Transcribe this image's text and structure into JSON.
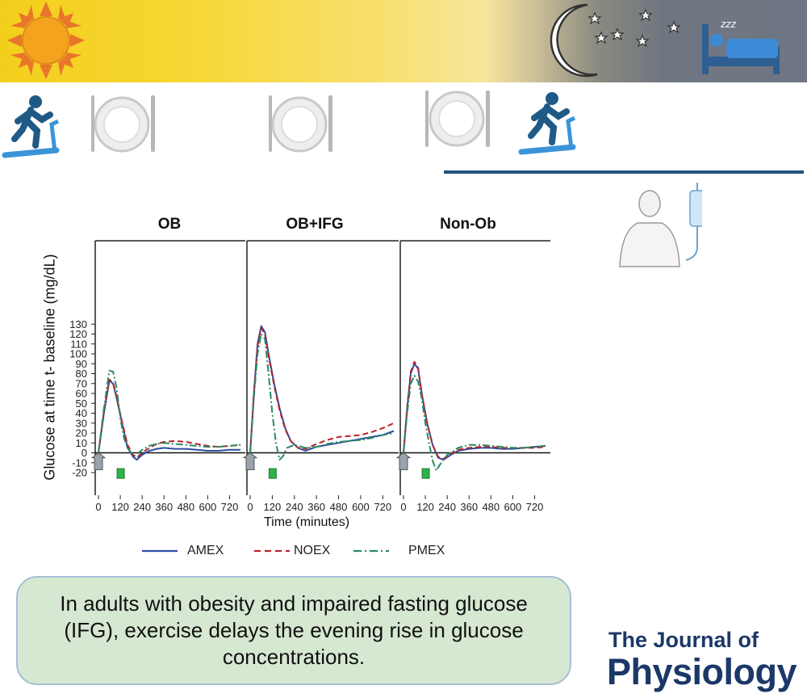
{
  "banner": {
    "icons": [
      "sun-icon",
      "moon-icon",
      "star-icon",
      "sleeping-bed-icon",
      "treadmill-runner-icon",
      "dinner-plate-icon",
      "iv-drip-patient-icon"
    ]
  },
  "chart_data": [
    {
      "type": "line",
      "title": "OB",
      "xlabel": "Time (minutes)",
      "ylabel": "Glucose at time t- baseline (mg/dL)",
      "xlim": [
        0,
        780
      ],
      "ylim": [
        -25,
        135
      ],
      "x_ticks": [
        "0",
        "120",
        "240",
        "360",
        "480",
        "600",
        "720"
      ],
      "y_ticks": [
        "-20",
        "-10",
        "0",
        "10",
        "20",
        "30",
        "40",
        "50",
        "60",
        "70",
        "80",
        "90",
        "100",
        "110",
        "120",
        "130"
      ],
      "series": [
        {
          "name": "AMEX",
          "color": "#2c4ea3",
          "dash": "solid",
          "x": [
            0,
            30,
            60,
            80,
            100,
            130,
            160,
            190,
            210,
            240,
            280,
            320,
            360,
            420,
            480,
            540,
            600,
            660,
            720,
            780
          ],
          "y": [
            0,
            40,
            73,
            70,
            55,
            30,
            5,
            -4,
            -7,
            -2,
            2,
            4,
            5,
            4,
            4,
            3,
            2,
            2,
            3,
            3
          ]
        },
        {
          "name": "NOEX",
          "color": "#b8232a",
          "dash": "dashed",
          "x": [
            0,
            30,
            60,
            80,
            100,
            130,
            160,
            190,
            210,
            240,
            280,
            320,
            360,
            420,
            480,
            540,
            600,
            660,
            720,
            780
          ],
          "y": [
            0,
            42,
            74,
            71,
            56,
            31,
            8,
            -2,
            -5,
            0,
            5,
            9,
            11,
            12,
            11,
            9,
            7,
            6,
            7,
            8
          ]
        },
        {
          "name": "PMEX",
          "color": "#2a8a63",
          "dash": "dashdot",
          "x": [
            0,
            30,
            60,
            80,
            100,
            120,
            140,
            160,
            180,
            200,
            240,
            280,
            320,
            360,
            420,
            480,
            540,
            600,
            660,
            720,
            780
          ],
          "y": [
            0,
            45,
            83,
            82,
            65,
            35,
            15,
            5,
            0,
            -3,
            3,
            7,
            9,
            10,
            9,
            8,
            7,
            6,
            6,
            7,
            8
          ]
        }
      ]
    },
    {
      "type": "line",
      "title": "OB+IFG",
      "xlabel": "Time (minutes)",
      "xlim": [
        0,
        780
      ],
      "ylim": [
        -25,
        135
      ],
      "x_ticks": [
        "0",
        "120",
        "240",
        "360",
        "480",
        "600",
        "720"
      ],
      "series": [
        {
          "name": "AMEX",
          "color": "#2c4ea3",
          "dash": "solid",
          "x": [
            0,
            20,
            40,
            60,
            80,
            100,
            130,
            160,
            190,
            220,
            260,
            300,
            360,
            420,
            480,
            540,
            600,
            660,
            720,
            780
          ],
          "y": [
            0,
            60,
            110,
            128,
            122,
            100,
            70,
            45,
            25,
            12,
            5,
            2,
            6,
            8,
            10,
            12,
            14,
            16,
            18,
            22
          ]
        },
        {
          "name": "NOEX",
          "color": "#b8232a",
          "dash": "dashed",
          "x": [
            0,
            20,
            40,
            60,
            80,
            100,
            130,
            160,
            190,
            220,
            260,
            300,
            360,
            420,
            480,
            540,
            600,
            660,
            720,
            780
          ],
          "y": [
            0,
            60,
            108,
            126,
            120,
            98,
            68,
            43,
            24,
            12,
            5,
            4,
            9,
            13,
            16,
            17,
            18,
            21,
            25,
            30
          ]
        },
        {
          "name": "PMEX",
          "color": "#2a8a63",
          "dash": "dashdot",
          "x": [
            0,
            20,
            40,
            60,
            80,
            100,
            120,
            140,
            160,
            180,
            200,
            240,
            300,
            360,
            420,
            480,
            540,
            600,
            660,
            720,
            780
          ],
          "y": [
            0,
            55,
            100,
            120,
            115,
            80,
            40,
            10,
            -7,
            -3,
            5,
            8,
            5,
            6,
            9,
            11,
            12,
            13,
            15,
            18,
            20
          ]
        }
      ]
    },
    {
      "type": "line",
      "title": "Non-Ob",
      "xlabel": "Time (minutes)",
      "xlim": [
        0,
        780
      ],
      "ylim": [
        -25,
        135
      ],
      "x_ticks": [
        "0",
        "120",
        "240",
        "360",
        "480",
        "600",
        "720"
      ],
      "series": [
        {
          "name": "AMEX",
          "color": "#2c4ea3",
          "dash": "solid",
          "x": [
            0,
            20,
            40,
            60,
            80,
            100,
            130,
            160,
            190,
            220,
            260,
            300,
            360,
            420,
            480,
            540,
            600,
            660,
            720,
            780
          ],
          "y": [
            0,
            45,
            80,
            90,
            85,
            60,
            30,
            8,
            -5,
            -7,
            -2,
            2,
            4,
            5,
            5,
            4,
            4,
            5,
            6,
            7
          ]
        },
        {
          "name": "NOEX",
          "color": "#b8232a",
          "dash": "dashed",
          "x": [
            0,
            20,
            40,
            60,
            80,
            100,
            130,
            160,
            190,
            220,
            260,
            300,
            360,
            420,
            480,
            540,
            600,
            660,
            720,
            780
          ],
          "y": [
            0,
            45,
            82,
            92,
            86,
            60,
            30,
            8,
            -4,
            -6,
            -1,
            3,
            5,
            6,
            6,
            5,
            5,
            5,
            5,
            6
          ]
        },
        {
          "name": "PMEX",
          "color": "#2a8a63",
          "dash": "dashdot",
          "x": [
            0,
            20,
            40,
            60,
            80,
            100,
            120,
            140,
            160,
            180,
            200,
            240,
            300,
            360,
            420,
            480,
            540,
            600,
            660,
            720,
            780
          ],
          "y": [
            0,
            40,
            70,
            78,
            72,
            55,
            30,
            10,
            -8,
            -18,
            -12,
            -2,
            5,
            8,
            8,
            7,
            6,
            5,
            5,
            6,
            7
          ]
        }
      ]
    }
  ],
  "axes": {
    "ylabel": "Glucose at time t- baseline (mg/dL)",
    "xlabel": "Time (minutes)"
  },
  "markers": {
    "meal": {
      "color": "#9aa2ae",
      "x": 0
    },
    "exercise": {
      "color": "#2db34a",
      "x": 120
    }
  },
  "legend": [
    {
      "label": "AMEX",
      "color": "#2c4ea3",
      "dash": "solid"
    },
    {
      "label": "NOEX",
      "color": "#b8232a",
      "dash": "dashed"
    },
    {
      "label": "PMEX",
      "color": "#2a8a63",
      "dash": "dashdot"
    }
  ],
  "message": "In  adults with obesity and impaired fasting glucose (IFG), exercise delays the evening rise in glucose concentrations.",
  "journal": {
    "line1": "The Journal of",
    "line2": "Physiology"
  },
  "colors": {
    "sun": "#f5a21f",
    "bed": "#3d7fc2",
    "divider": "#24527f",
    "box_fill": "#d6e8d1"
  }
}
